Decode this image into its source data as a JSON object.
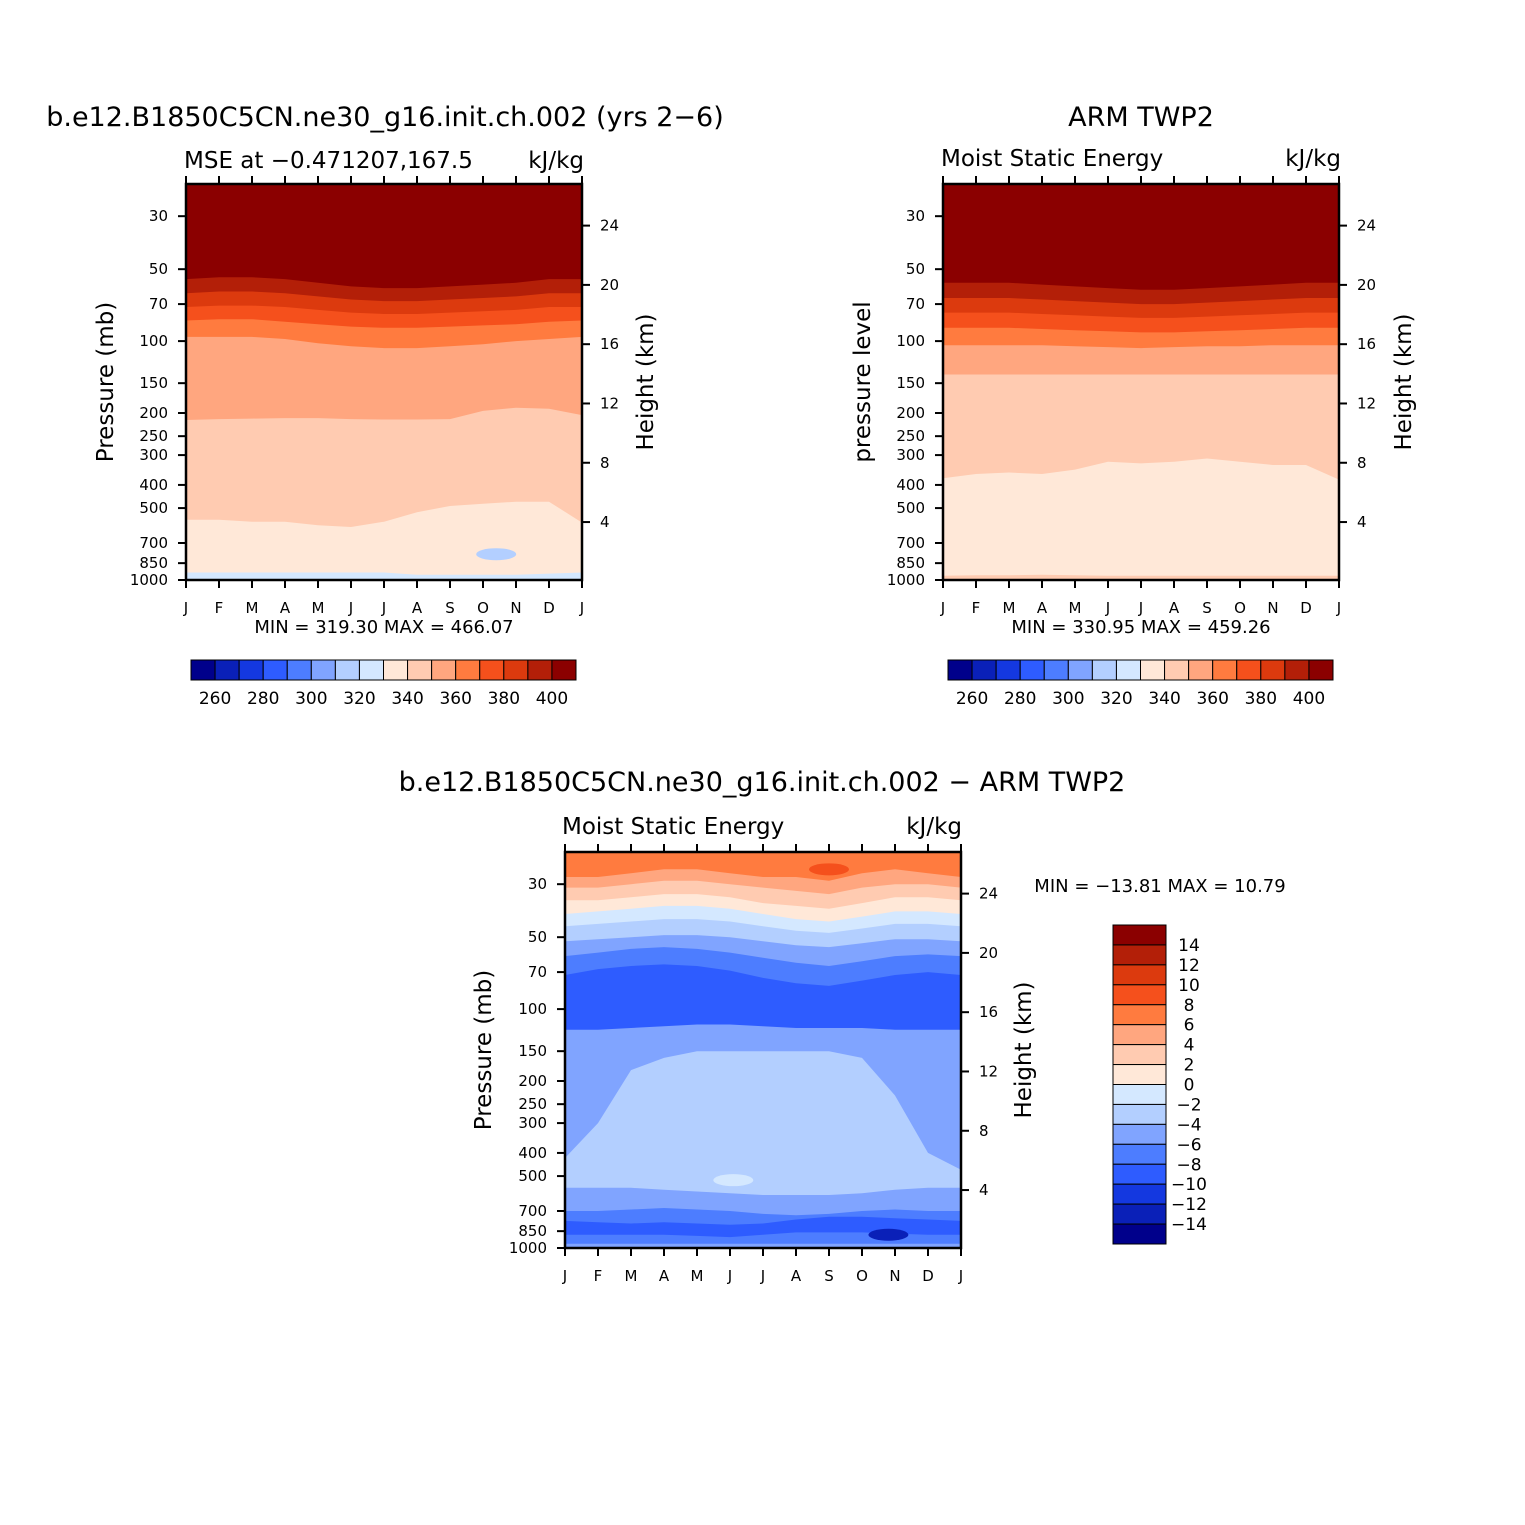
{
  "chart_data": [
    {
      "type": "heatmap",
      "id": "model",
      "title": "b.e12.B1850C5CN.ne30_g16.init.ch.002 (yrs 2−6)",
      "subtitle_left": "MSE at −0.471207,167.5",
      "subtitle_right": "kJ/kg",
      "ylabel": "Pressure (mb)",
      "y2label": "Height (km)",
      "x_ticks": [
        "J",
        "F",
        "M",
        "A",
        "M",
        "J",
        "J",
        "A",
        "S",
        "O",
        "N",
        "D",
        "J"
      ],
      "pressure_ticks": [
        30,
        50,
        70,
        100,
        150,
        200,
        250,
        300,
        400,
        500,
        700,
        850,
        1000
      ],
      "height_ticks": [
        24,
        20,
        16,
        12,
        8,
        4
      ],
      "minmax_text": "MIN = 319.30 MAX = 466.07",
      "min": 319.3,
      "max": 466.07,
      "bands": [
        {
          "level": 400,
          "color": "#8b0000",
          "boundary": [
            55,
            54,
            54,
            55,
            57,
            59,
            60,
            60,
            59,
            58,
            57,
            55,
            55
          ]
        },
        {
          "level": 390,
          "color": "#b31f08",
          "boundary": [
            63,
            62,
            62,
            63,
            65,
            67,
            68,
            68,
            67,
            66,
            65,
            63,
            63
          ]
        },
        {
          "level": 380,
          "color": "#dc3a0e",
          "boundary": [
            72,
            71,
            71,
            72,
            74,
            76,
            77,
            77,
            76,
            75,
            74,
            72,
            72
          ]
        },
        {
          "level": 370,
          "color": "#f5501c",
          "boundary": [
            82,
            81,
            81,
            83,
            85,
            87,
            88,
            88,
            87,
            86,
            85,
            83,
            82
          ]
        },
        {
          "level": 360,
          "color": "#ff7b3f",
          "boundary": [
            96,
            96,
            96,
            98,
            102,
            105,
            107,
            107,
            105,
            103,
            100,
            98,
            96
          ]
        },
        {
          "level": 350,
          "color": "#ffa67f",
          "boundary": [
            214,
            212,
            211,
            210,
            210,
            212,
            213,
            213,
            212,
            196,
            190,
            192,
            204
          ]
        },
        {
          "level": 340,
          "color": "#ffcbb1",
          "boundary": [
            560,
            560,
            570,
            570,
            590,
            600,
            570,
            520,
            490,
            480,
            470,
            470,
            575
          ]
        },
        {
          "level": 330,
          "color": "#ffe8d8",
          "boundary": [
            930,
            930,
            930,
            930,
            930,
            930,
            930,
            950,
            950,
            950,
            950,
            940,
            930
          ]
        },
        {
          "level": 320,
          "color": "#d4e8ff",
          "boundary": [
            1000,
            1000,
            1000,
            1000,
            1000,
            1000,
            1000,
            1000,
            1000,
            1000,
            1000,
            1000,
            1000
          ]
        }
      ],
      "blobs": [
        {
          "level": 310,
          "color": "#b3cfff",
          "month": 9.4,
          "pressure": 780
        }
      ],
      "colorbar": {
        "levels": [
          250,
          260,
          270,
          280,
          290,
          300,
          310,
          320,
          330,
          340,
          350,
          360,
          370,
          380,
          390,
          400,
          410
        ],
        "labels": [
          "260",
          "280",
          "300",
          "320",
          "340",
          "360",
          "380",
          "400"
        ],
        "colors": [
          "#00008b",
          "#0a20b8",
          "#1438e0",
          "#2e5cff",
          "#4d7dff",
          "#80a4ff",
          "#b3cfff",
          "#d4e8ff",
          "#ffe8d8",
          "#ffcbb1",
          "#ffa67f",
          "#ff7b3f",
          "#f5501c",
          "#dc3a0e",
          "#b31f08",
          "#8b0000"
        ]
      }
    },
    {
      "type": "heatmap",
      "id": "obs",
      "title": "ARM TWP2",
      "subtitle_left": "Moist Static Energy",
      "subtitle_right": "kJ/kg",
      "ylabel": "pressure level",
      "y2label": "Height (km)",
      "x_ticks": [
        "J",
        "F",
        "M",
        "A",
        "M",
        "J",
        "J",
        "A",
        "S",
        "O",
        "N",
        "D",
        "J"
      ],
      "pressure_ticks": [
        30,
        50,
        70,
        100,
        150,
        200,
        250,
        300,
        400,
        500,
        700,
        850,
        1000
      ],
      "height_ticks": [
        24,
        20,
        16,
        12,
        8,
        4
      ],
      "minmax_text": "MIN = 330.95 MAX = 459.26",
      "min": 330.95,
      "max": 459.26,
      "bands": [
        {
          "level": 400,
          "color": "#8b0000",
          "boundary": [
            57,
            57,
            57,
            58,
            59,
            60,
            61,
            61,
            60,
            59,
            58,
            57,
            57
          ]
        },
        {
          "level": 390,
          "color": "#b31f08",
          "boundary": [
            66,
            66,
            66,
            67,
            68,
            69,
            70,
            70,
            69,
            68,
            67,
            66,
            66
          ]
        },
        {
          "level": 380,
          "color": "#dc3a0e",
          "boundary": [
            76,
            76,
            76,
            77,
            78,
            79,
            80,
            80,
            79,
            78,
            77,
            76,
            76
          ]
        },
        {
          "level": 370,
          "color": "#f5501c",
          "boundary": [
            88,
            88,
            88,
            89,
            90,
            91,
            92,
            92,
            91,
            90,
            89,
            88,
            88
          ]
        },
        {
          "level": 360,
          "color": "#ff7b3f",
          "boundary": [
            104,
            104,
            104,
            104,
            105,
            106,
            107,
            106,
            105,
            105,
            104,
            104,
            104
          ]
        },
        {
          "level": 350,
          "color": "#ffa67f",
          "boundary": [
            138,
            138,
            138,
            138,
            138,
            138,
            138,
            138,
            138,
            138,
            138,
            138,
            138
          ]
        },
        {
          "level": 340,
          "color": "#ffcbb1",
          "boundary": [
            375,
            360,
            355,
            360,
            345,
            320,
            325,
            320,
            310,
            320,
            330,
            330,
            380
          ]
        },
        {
          "level": 330,
          "color": "#ffe8d8",
          "boundary": [
            960,
            955,
            955,
            950,
            955,
            960,
            960,
            960,
            960,
            960,
            960,
            960,
            960
          ]
        },
        {
          "level": 330,
          "color": "#ffcbb1",
          "boundary": [
            1000,
            1000,
            1000,
            1000,
            1000,
            1000,
            1000,
            1000,
            1000,
            1000,
            1000,
            1000,
            1000
          ]
        }
      ],
      "blobs": [],
      "colorbar": {
        "levels": [
          250,
          260,
          270,
          280,
          290,
          300,
          310,
          320,
          330,
          340,
          350,
          360,
          370,
          380,
          390,
          400,
          410
        ],
        "labels": [
          "260",
          "280",
          "300",
          "320",
          "340",
          "360",
          "380",
          "400"
        ],
        "colors": [
          "#00008b",
          "#0a20b8",
          "#1438e0",
          "#2e5cff",
          "#4d7dff",
          "#80a4ff",
          "#b3cfff",
          "#d4e8ff",
          "#ffe8d8",
          "#ffcbb1",
          "#ffa67f",
          "#ff7b3f",
          "#f5501c",
          "#dc3a0e",
          "#b31f08",
          "#8b0000"
        ]
      }
    },
    {
      "type": "heatmap",
      "id": "diff",
      "title": "b.e12.B1850C5CN.ne30_g16.init.ch.002 − ARM TWP2",
      "subtitle_left": "Moist Static Energy",
      "subtitle_right": "kJ/kg",
      "ylabel": "Pressure (mb)",
      "y2label": "Height (km)",
      "x_ticks": [
        "J",
        "F",
        "M",
        "A",
        "M",
        "J",
        "J",
        "A",
        "S",
        "O",
        "N",
        "D",
        "J"
      ],
      "pressure_ticks": [
        30,
        50,
        70,
        100,
        150,
        200,
        250,
        300,
        400,
        500,
        700,
        850,
        1000
      ],
      "height_ticks": [
        24,
        20,
        16,
        12,
        8,
        4
      ],
      "minmax_text": "MIN = −13.81 MAX = 10.79",
      "min": -13.81,
      "max": 10.79,
      "bands": [
        {
          "level": 8,
          "color": "#ff7b3f",
          "boundary": [
            28,
            28,
            27,
            26,
            26,
            27,
            28,
            28,
            29,
            27,
            26,
            27,
            28
          ]
        },
        {
          "level": 6,
          "color": "#ffa67f",
          "boundary": [
            31,
            31,
            30,
            29,
            29,
            30,
            31,
            32,
            33,
            31,
            30,
            30,
            31
          ]
        },
        {
          "level": 4,
          "color": "#ffcbb1",
          "boundary": [
            35,
            35,
            34,
            33,
            33,
            34,
            36,
            37,
            38,
            36,
            34,
            34,
            35
          ]
        },
        {
          "level": 2,
          "color": "#ffe8d8",
          "boundary": [
            40,
            39,
            38,
            37,
            37,
            38,
            40,
            42,
            43,
            41,
            39,
            39,
            40
          ]
        },
        {
          "level": 0,
          "color": "#d4e8ff",
          "boundary": [
            45,
            44,
            43,
            42,
            42,
            43,
            45,
            47,
            48,
            46,
            44,
            44,
            45
          ]
        },
        {
          "level": -2,
          "color": "#b3cfff",
          "boundary": [
            52,
            51,
            50,
            49,
            49,
            50,
            52,
            54,
            55,
            53,
            51,
            51,
            52
          ]
        },
        {
          "level": -4,
          "color": "#80a4ff",
          "boundary": [
            60,
            58,
            56,
            55,
            56,
            58,
            61,
            64,
            66,
            63,
            60,
            59,
            60
          ]
        },
        {
          "level": -6,
          "color": "#4d7dff",
          "boundary": [
            72,
            68,
            66,
            65,
            66,
            69,
            74,
            78,
            80,
            76,
            72,
            70,
            72
          ]
        },
        {
          "level": -8,
          "color": "#2e5cff",
          "boundary": [
            122,
            122,
            120,
            118,
            116,
            116,
            118,
            120,
            120,
            120,
            122,
            122,
            122
          ]
        },
        {
          "level": -6,
          "color": "#80a4ff",
          "boundary": [
            420,
            300,
            180,
            160,
            150,
            150,
            150,
            150,
            150,
            160,
            230,
            400,
            470
          ]
        },
        {
          "level": -4,
          "color": "#b3cfff",
          "boundary": [
            560,
            560,
            560,
            570,
            580,
            590,
            600,
            600,
            600,
            590,
            570,
            560,
            560
          ]
        },
        {
          "level": -6,
          "color": "#80a4ff",
          "boundary": [
            700,
            700,
            690,
            680,
            690,
            700,
            720,
            730,
            720,
            700,
            690,
            700,
            700
          ]
        },
        {
          "level": -8,
          "color": "#4d7dff",
          "boundary": [
            770,
            780,
            790,
            780,
            790,
            800,
            790,
            760,
            740,
            740,
            750,
            760,
            770
          ]
        },
        {
          "level": -10,
          "color": "#2e5cff",
          "boundary": [
            880,
            880,
            880,
            880,
            890,
            900,
            880,
            860,
            860,
            860,
            870,
            880,
            880
          ]
        },
        {
          "level": -8,
          "color": "#4d7dff",
          "boundary": [
            960,
            960,
            960,
            960,
            960,
            960,
            960,
            960,
            960,
            960,
            960,
            960,
            960
          ]
        },
        {
          "level": -6,
          "color": "#80a4ff",
          "boundary": [
            1000,
            1000,
            1000,
            1000,
            1000,
            1000,
            1000,
            1000,
            1000,
            1000,
            1000,
            1000,
            1000
          ]
        }
      ],
      "blobs": [
        {
          "level": -14,
          "color": "#0a20b8",
          "month": 9.8,
          "pressure": 880
        },
        {
          "level": -2,
          "color": "#d4e8ff",
          "month": 5.1,
          "pressure": 520
        },
        {
          "level": 10,
          "color": "#f5501c",
          "month": 8.0,
          "pressure": 26
        }
      ],
      "colorbar": {
        "levels": [
          -16,
          -14,
          -12,
          -10,
          -8,
          -6,
          -4,
          -2,
          0,
          2,
          4,
          6,
          8,
          10,
          12,
          14,
          16
        ],
        "labels": [
          "14",
          "12",
          "10",
          "8",
          "6",
          "4",
          "2",
          "0",
          "−2",
          "−4",
          "−6",
          "−8",
          "−10",
          "−12",
          "−14"
        ],
        "colors": [
          "#8b0000",
          "#b31f08",
          "#dc3a0e",
          "#f5501c",
          "#ff7b3f",
          "#ffa67f",
          "#ffcbb1",
          "#ffe8d8",
          "#d4e8ff",
          "#b3cfff",
          "#80a4ff",
          "#4d7dff",
          "#2e5cff",
          "#1438e0",
          "#0a20b8",
          "#00008b"
        ]
      }
    }
  ]
}
